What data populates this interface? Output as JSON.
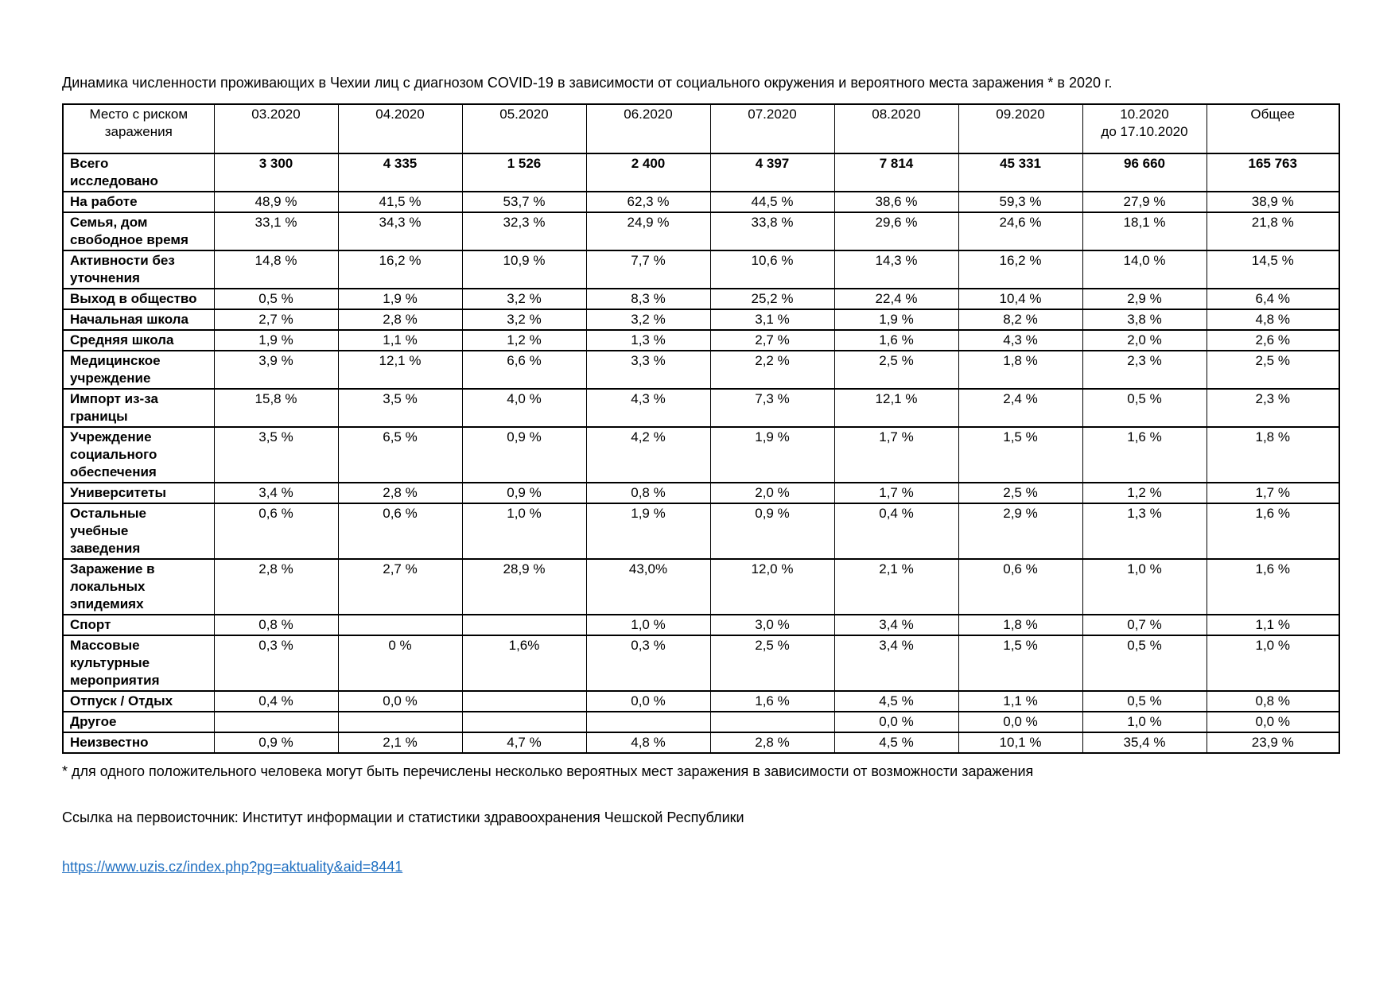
{
  "page": {
    "title": "Динамика численности проживающих в Чехии лиц с диагнозом COVID-19 в зависимости от социального окружения и вероятного места заражения * в 2020 г.",
    "footnote": "* для одного положительного человека могут быть перечислены несколько вероятных мест заражения в зависимости от возможности заражения",
    "source_line": "Ссылка на первоисточник: Институт информации и статистики здравоохранения Чешской Республики",
    "link": "https://www.uzis.cz/index.php?pg=aktuality&aid=8441",
    "link_color": "#1f6fc1"
  },
  "table": {
    "columns": [
      "Место с риском\nзаражения",
      "03.2020",
      "04.2020",
      "05.2020",
      "06.2020",
      "07.2020",
      "08.2020",
      "09.2020",
      "10.2020\nдо 17.10.2020",
      "Общее"
    ],
    "rows": [
      {
        "label": "Всего\nисследовано",
        "bold": true,
        "values": [
          "3 300",
          "4 335",
          "1 526",
          "2 400",
          "4 397",
          "7 814",
          "45 331",
          "96 660",
          "165 763"
        ]
      },
      {
        "label": "На работе",
        "values": [
          "48,9 %",
          "41,5 %",
          "53,7 %",
          "62,3 %",
          "44,5 %",
          "38,6 %",
          "59,3 %",
          "27,9 %",
          "38,9 %"
        ]
      },
      {
        "label": "Семья, дом\nсвободное время",
        "values": [
          "33,1 %",
          "34,3 %",
          "32,3 %",
          "24,9 %",
          "33,8 %",
          "29,6 %",
          "24,6 %",
          "18,1 %",
          "21,8 %"
        ]
      },
      {
        "label": "Активности без\nуточнения",
        "values": [
          "14,8 %",
          "16,2 %",
          "10,9 %",
          "7,7 %",
          "10,6 %",
          "14,3 %",
          "16,2 %",
          "14,0 %",
          "14,5 %"
        ]
      },
      {
        "label": "Выход в общество",
        "values": [
          "0,5 %",
          "1,9 %",
          "3,2 %",
          "8,3 %",
          "25,2 %",
          "22,4 %",
          "10,4 %",
          "2,9 %",
          "6,4 %"
        ]
      },
      {
        "label": "Начальная школа",
        "values": [
          "2,7 %",
          "2,8 %",
          "3,2 %",
          "3,2 %",
          "3,1 %",
          "1,9 %",
          "8,2 %",
          "3,8 %",
          "4,8 %"
        ]
      },
      {
        "label": "Средняя школа",
        "values": [
          "1,9 %",
          "1,1 %",
          "1,2 %",
          "1,3 %",
          "2,7 %",
          "1,6 %",
          "4,3 %",
          "2,0 %",
          "2,6 %"
        ]
      },
      {
        "label": "Медицинское\nучреждение",
        "values": [
          "3,9 %",
          "12,1 %",
          "6,6 %",
          "3,3 %",
          "2,2 %",
          "2,5 %",
          "1,8 %",
          "2,3 %",
          "2,5 %"
        ]
      },
      {
        "label": "Импорт из-за\nграницы",
        "values": [
          "15,8 %",
          "3,5 %",
          "4,0 %",
          "4,3 %",
          "7,3 %",
          "12,1 %",
          "2,4 %",
          "0,5 %",
          "2,3 %"
        ]
      },
      {
        "label": "Учреждение\nсоциального\nобеспечения",
        "values": [
          "3,5 %",
          "6,5 %",
          "0,9 %",
          "4,2 %",
          "1,9 %",
          "1,7 %",
          "1,5 %",
          "1,6 %",
          "1,8 %"
        ]
      },
      {
        "label": "Университеты",
        "values": [
          "3,4 %",
          "2,8 %",
          "0,9 %",
          "0,8 %",
          "2,0 %",
          "1,7 %",
          "2,5 %",
          "1,2 %",
          "1,7 %"
        ]
      },
      {
        "label": "Остальные\nучебные\nзаведения",
        "values": [
          "0,6 %",
          "0,6 %",
          "1,0 %",
          "1,9 %",
          "0,9 %",
          "0,4 %",
          "2,9 %",
          "1,3 %",
          "1,6 %"
        ]
      },
      {
        "label": "Заражение в\nлокальных\nэпидемиях",
        "values": [
          "2,8 %",
          "2,7 %",
          "28,9 %",
          "43,0%",
          "12,0 %",
          "2,1 %",
          "0,6 %",
          "1,0 %",
          "1,6 %"
        ]
      },
      {
        "label": "Спорт",
        "values": [
          "0,8 %",
          "",
          "",
          "1,0 %",
          "3,0 %",
          "3,4 %",
          "1,8 %",
          "0,7 %",
          "1,1 %"
        ]
      },
      {
        "label": "Массовые\nкультурные\nмероприятия",
        "values": [
          "0,3 %",
          "0 %",
          "1,6%",
          "0,3 %",
          "2,5 %",
          "3,4 %",
          "1,5 %",
          "0,5 %",
          "1,0 %"
        ]
      },
      {
        "label": "Отпуск / Отдых",
        "values": [
          "0,4 %",
          "0,0 %",
          "",
          "0,0 %",
          "1,6 %",
          "4,5 %",
          "1,1 %",
          "0,5 %",
          "0,8 %"
        ]
      },
      {
        "label": "Другое",
        "values": [
          "",
          "",
          "",
          "",
          "",
          "0,0 %",
          "0,0 %",
          "1,0 %",
          "0,0 %"
        ]
      },
      {
        "label": "Неизвестно",
        "values": [
          "0,9 %",
          "2,1 %",
          "4,7 %",
          "4,8 %",
          "2,8 %",
          "4,5 %",
          "10,1 %",
          "35,4 %",
          "23,9 %"
        ]
      }
    ]
  }
}
